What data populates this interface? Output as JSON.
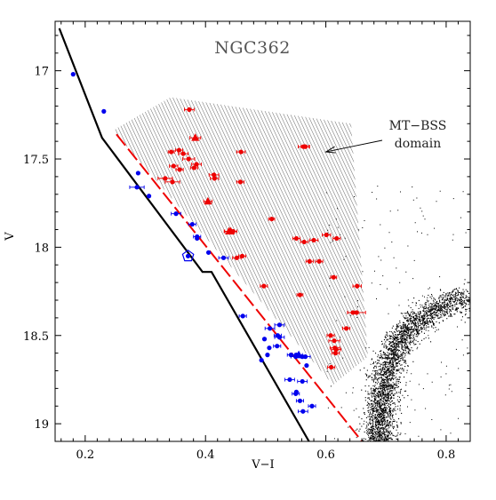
{
  "chart_data": {
    "type": "scatter",
    "title": "NGC362",
    "xlabel": "V−I",
    "ylabel": "V",
    "xlim": [
      0.15,
      0.84
    ],
    "ylim": [
      19.1,
      16.72
    ],
    "y_inverted": true,
    "x_ticks": [
      0.2,
      0.4,
      0.6,
      0.8
    ],
    "x_tick_labels": [
      "0.2",
      "0.4",
      "0.6",
      "0.8"
    ],
    "y_ticks": [
      17,
      17.5,
      18,
      18.5,
      19
    ],
    "y_tick_labels": [
      "17",
      "17.5",
      "18",
      "18.5",
      "19"
    ],
    "grid": false,
    "legend": "none",
    "annotations": [
      {
        "lines": [
          "MT−BSS",
          "domain"
        ],
        "arrow_to": [
          0.6,
          17.46
        ]
      }
    ],
    "colors": {
      "red": "#ee0000",
      "blue": "#0000ee",
      "rgb": "#000000",
      "hatch": "#555555"
    },
    "mt_bss_domain_polygon": [
      [
        0.25,
        17.33
      ],
      [
        0.342,
        17.15
      ],
      [
        0.642,
        17.3
      ],
      [
        0.67,
        18.62
      ],
      [
        0.612,
        18.78
      ],
      [
        0.252,
        17.36
      ]
    ],
    "zams_line": [
      [
        0.157,
        16.76
      ],
      [
        0.228,
        17.38
      ],
      [
        0.395,
        18.14
      ],
      [
        0.41,
        18.14
      ],
      [
        0.572,
        19.1
      ]
    ],
    "dashed_line": [
      [
        0.252,
        17.36
      ],
      [
        0.66,
        19.1
      ]
    ],
    "series": [
      {
        "name": "",
        "marker": "circle",
        "color": "#ee0000",
        "x": [
          0.373,
          0.356,
          0.363,
          0.343,
          0.347,
          0.357,
          0.372,
          0.385,
          0.381,
          0.333,
          0.345,
          0.414,
          0.415,
          0.459,
          0.458,
          0.566,
          0.563,
          0.51,
          0.564,
          0.58,
          0.551,
          0.573,
          0.601,
          0.618,
          0.589,
          0.452,
          0.461,
          0.446,
          0.497,
          0.557,
          0.613,
          0.652,
          0.651,
          0.645,
          0.634,
          0.608,
          0.614,
          0.615,
          0.617,
          0.616,
          0.609
        ],
        "y": [
          17.22,
          17.45,
          17.47,
          17.46,
          17.54,
          17.56,
          17.5,
          17.53,
          17.55,
          17.61,
          17.63,
          17.59,
          17.61,
          17.46,
          17.63,
          17.43,
          17.43,
          17.84,
          17.97,
          17.96,
          17.95,
          18.08,
          17.93,
          17.95,
          18.08,
          18.06,
          18.05,
          17.91,
          18.22,
          18.27,
          18.17,
          18.22,
          18.37,
          18.37,
          18.46,
          18.5,
          18.53,
          18.57,
          18.58,
          18.6,
          18.68
        ],
        "xerr": [
          0.008,
          0.006,
          0.008,
          0.005,
          0.007,
          0.006,
          0.01,
          0.008,
          0.006,
          0.012,
          0.012,
          0.008,
          0.007,
          0.007,
          0.006,
          0.007,
          0.009,
          0.005,
          0.006,
          0.007,
          0.006,
          0.006,
          0.007,
          0.006,
          0.006,
          0.007,
          0.006,
          0.006,
          0.006,
          0.005,
          0.005,
          0.007,
          0.015,
          0.009,
          0.006,
          0.006,
          0.009,
          0.008,
          0.008,
          0.006,
          0.006
        ]
      },
      {
        "name": "",
        "marker": "triangle",
        "color": "#ee0000",
        "x": [
          0.383,
          0.404,
          0.439,
          0.442
        ],
        "y": [
          17.38,
          17.74,
          17.91,
          17.91
        ],
        "xerr": [
          0.009,
          0.007,
          0.008,
          0.01
        ]
      },
      {
        "name": "",
        "marker": "circle",
        "color": "#0000ee",
        "x": [
          0.18,
          0.231,
          0.288,
          0.286,
          0.306,
          0.351,
          0.378,
          0.386,
          0.405,
          0.386,
          0.43,
          0.462,
          0.507,
          0.523,
          0.52,
          0.523,
          0.519,
          0.506,
          0.498,
          0.503,
          0.493,
          0.542,
          0.55,
          0.551,
          0.561,
          0.568,
          0.561,
          0.54,
          0.55,
          0.551,
          0.557,
          0.562,
          0.577,
          0.566
        ],
        "y": [
          17.02,
          17.23,
          17.58,
          17.66,
          17.71,
          17.81,
          17.87,
          17.94,
          18.03,
          17.95,
          18.06,
          18.39,
          18.46,
          18.44,
          18.5,
          18.51,
          18.56,
          18.57,
          18.52,
          18.61,
          18.64,
          18.61,
          18.62,
          18.61,
          18.62,
          18.67,
          18.76,
          18.75,
          18.83,
          18.82,
          18.87,
          18.93,
          18.9,
          18.62
        ],
        "xerr": [
          0,
          0,
          0,
          0.012,
          0,
          0.008,
          0.006,
          0.006,
          0,
          0,
          0.008,
          0.006,
          0.008,
          0.008,
          0.006,
          0.008,
          0.006,
          0,
          0,
          0,
          0,
          0.006,
          0.008,
          0.006,
          0.006,
          0,
          0.008,
          0.008,
          0.006,
          0,
          0.006,
          0.008,
          0.006,
          0.008
        ]
      },
      {
        "name": "",
        "marker": "triangle",
        "color": "#0000ee",
        "x": [
          0.555
        ],
        "y": [
          18.61
        ],
        "xerr": [
          0.006
        ]
      },
      {
        "name": "",
        "marker": "pentagon",
        "color": "#0000ee",
        "x": [
          0.371
        ],
        "y": [
          18.05
        ],
        "xerr": [
          0
        ]
      },
      {
        "name": "",
        "marker": "dot",
        "color": "#000000",
        "population": "red giant branch",
        "ridge_line": [
          [
            0.84,
            18.28
          ],
          [
            0.79,
            18.33
          ],
          [
            0.74,
            18.45
          ],
          [
            0.71,
            18.6
          ],
          [
            0.695,
            18.78
          ],
          [
            0.69,
            18.98
          ],
          [
            0.688,
            19.1
          ]
        ],
        "sample_points": 3000
      }
    ]
  }
}
